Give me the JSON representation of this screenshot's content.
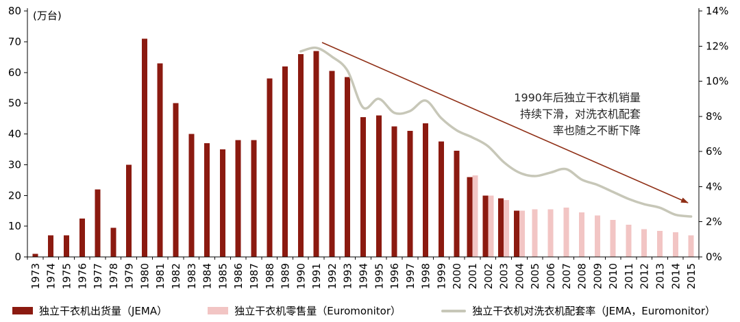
{
  "chart_data": {
    "type": "combo",
    "unit_label": "(万台)",
    "categories": [
      1973,
      1974,
      1975,
      1976,
      1977,
      1978,
      1979,
      1980,
      1981,
      1982,
      1983,
      1984,
      1985,
      1986,
      1987,
      1988,
      1989,
      1990,
      1991,
      1992,
      1993,
      1994,
      1995,
      1996,
      1997,
      1998,
      1999,
      2000,
      2001,
      2002,
      2003,
      2004,
      2005,
      2006,
      2007,
      2008,
      2009,
      2010,
      2011,
      2012,
      2013,
      2014,
      2015
    ],
    "series": [
      {
        "name": "独立干衣机出货量（JEMA）",
        "type": "bar",
        "axis": "left",
        "color": "#8B1A10",
        "values": [
          1,
          7,
          7,
          12.5,
          22,
          9.5,
          30,
          71,
          63,
          50,
          40,
          37,
          35,
          38,
          38,
          58,
          62,
          66,
          67,
          60.5,
          58.5,
          45.5,
          46,
          42.5,
          41,
          43.5,
          37.5,
          34.5,
          26,
          20,
          19,
          15,
          null,
          null,
          null,
          null,
          null,
          null,
          null,
          null,
          null,
          null,
          null
        ]
      },
      {
        "name": "独立干衣机零售量（Euromonitor）",
        "type": "bar",
        "axis": "left",
        "color": "#F2C5C4",
        "values": [
          null,
          null,
          null,
          null,
          null,
          null,
          null,
          null,
          null,
          null,
          null,
          null,
          null,
          null,
          null,
          null,
          null,
          null,
          null,
          null,
          null,
          null,
          null,
          null,
          null,
          null,
          null,
          null,
          26.5,
          20,
          18.5,
          15,
          15.5,
          15.5,
          16,
          14.5,
          13.5,
          12,
          10.5,
          9,
          8.5,
          8,
          7
        ]
      },
      {
        "name": "独立干衣机对洗衣机配套率（JEMA，Euromonitor）",
        "type": "line",
        "axis": "right",
        "color": "#C7C7B8",
        "values": [
          null,
          null,
          null,
          null,
          null,
          null,
          null,
          null,
          null,
          null,
          null,
          null,
          null,
          null,
          null,
          null,
          null,
          11.7,
          11.9,
          11.4,
          10.6,
          8.5,
          9,
          8.2,
          8.3,
          8.9,
          7.9,
          7.2,
          6.8,
          6.3,
          5.4,
          4.8,
          4.6,
          4.8,
          5,
          4.4,
          4.1,
          3.7,
          3.3,
          3,
          2.8,
          2.4,
          2.3
        ]
      }
    ],
    "left_axis": {
      "min": 0,
      "max": 80,
      "step": 10,
      "ticks": [
        "0",
        "10",
        "20",
        "30",
        "40",
        "50",
        "60",
        "70",
        "80"
      ]
    },
    "right_axis": {
      "min": 0,
      "max": 14,
      "step": 2,
      "ticks": [
        "0%",
        "2%",
        "4%",
        "6%",
        "8%",
        "10%",
        "12%",
        "14%"
      ]
    },
    "annotation": {
      "lines": [
        "1990年后独立干衣机销量",
        "持续下滑，对洗衣机配套",
        "率也随之不断下降"
      ],
      "arrow_color": "#8F2F16"
    },
    "legend": [
      {
        "label": "独立干衣机出货量（JEMA）",
        "color": "#8B1A10",
        "type": "bar"
      },
      {
        "label": "独立干衣机零售量（Euromonitor）",
        "color": "#F2C5C4",
        "type": "bar"
      },
      {
        "label": "独立干衣机对洗衣机配套率（JEMA，Euromonitor）",
        "color": "#C7C7B8",
        "type": "line"
      }
    ]
  }
}
